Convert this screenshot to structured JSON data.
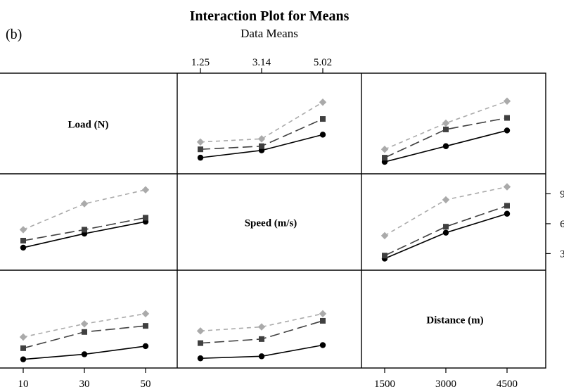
{
  "chart_data": {
    "type": "line",
    "panel_tag": "(b)",
    "title": "Interaction Plot for Means",
    "subtitle": "Data Means",
    "factors": [
      {
        "name": "Load (N)",
        "levels": [
          10,
          30,
          50
        ],
        "tick_labels": [
          "10",
          "30",
          "50"
        ]
      },
      {
        "name": "Speed (m/s)",
        "levels": [
          1.25,
          3.14,
          5.02
        ],
        "tick_labels": [
          "1.25",
          "3.14",
          "5.02"
        ]
      },
      {
        "name": "Distance (m)",
        "levels": [
          1500,
          3000,
          4500
        ],
        "tick_labels": [
          "1500",
          "3000",
          "4500"
        ]
      }
    ],
    "ylim": [
      1.9,
      10.3
    ],
    "y_ticks": [
      3,
      6,
      9
    ],
    "series_styles": [
      {
        "level": 0,
        "color": "#000000",
        "marker": "circle",
        "dash": ""
      },
      {
        "level": 1,
        "color": "#404040",
        "marker": "square",
        "dash": "14,6"
      },
      {
        "level": 2,
        "color": "#aaaaaa",
        "marker": "diamond",
        "dash": "6,5"
      }
    ],
    "panels": [
      {
        "row": 0,
        "col": 1,
        "series": [
          [
            2.9,
            3.6,
            5.1
          ],
          [
            3.7,
            4.0,
            6.6
          ],
          [
            4.4,
            4.7,
            8.2
          ]
        ]
      },
      {
        "row": 0,
        "col": 2,
        "series": [
          [
            2.5,
            4.0,
            5.5
          ],
          [
            2.9,
            5.6,
            6.7
          ],
          [
            3.7,
            6.2,
            8.3
          ]
        ]
      },
      {
        "row": 1,
        "col": 0,
        "series": [
          [
            3.6,
            5.0,
            6.2
          ],
          [
            4.3,
            5.4,
            6.6
          ],
          [
            5.4,
            8.0,
            9.4
          ]
        ]
      },
      {
        "row": 1,
        "col": 2,
        "series": [
          [
            2.5,
            5.1,
            7.0
          ],
          [
            2.8,
            5.7,
            7.8
          ],
          [
            4.8,
            8.4,
            9.7
          ]
        ]
      },
      {
        "row": 2,
        "col": 0,
        "series": [
          [
            2.2,
            2.7,
            3.5
          ],
          [
            3.3,
            4.9,
            5.5
          ],
          [
            4.4,
            5.7,
            6.7
          ]
        ]
      },
      {
        "row": 2,
        "col": 1,
        "series": [
          [
            2.3,
            2.5,
            3.6
          ],
          [
            3.8,
            4.2,
            6.0
          ],
          [
            5.0,
            5.4,
            6.7
          ]
        ]
      }
    ]
  }
}
